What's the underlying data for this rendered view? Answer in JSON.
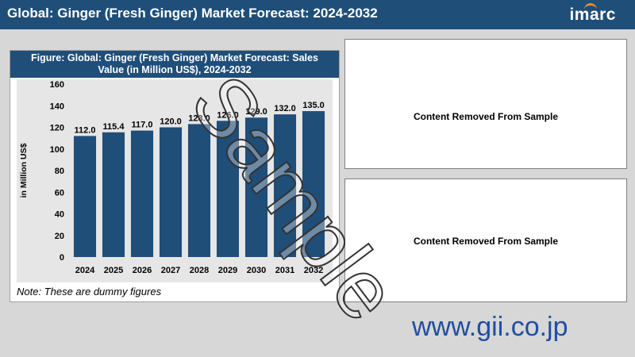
{
  "header": {
    "title": "Global: Ginger (Fresh Ginger) Market Forecast: 2024-2032",
    "logo": "imarc"
  },
  "figure": {
    "caption_line1": "Figure: Global: Ginger (Fresh Ginger) Market Forecast: Sales",
    "caption_line2": "Value (in Million US$), 2024-2032",
    "note": "Note: These are dummy figures"
  },
  "content_boxes": {
    "top_text": "Content Removed From Sample",
    "bottom_text": "Content Removed From Sample"
  },
  "website": "www.gii.co.jp",
  "watermark": "Sample",
  "colors": {
    "header_bg": "#1f4e79",
    "bar": "#1f4e79",
    "website": "#1f4fa0"
  },
  "chart_data": {
    "type": "bar",
    "categories": [
      "2024",
      "2025",
      "2026",
      "2027",
      "2028",
      "2029",
      "2030",
      "2031",
      "2032"
    ],
    "values": [
      112.0,
      115.4,
      117.0,
      120.0,
      123.0,
      126.0,
      129.0,
      132.0,
      135.0
    ],
    "value_labels": [
      "112.0",
      "115.4",
      "117.0",
      "120.0",
      "123.0",
      "126.0",
      "129.0",
      "132.0",
      "135.0"
    ],
    "ylabel": "in Million US$",
    "yticks": [
      0,
      20,
      40,
      60,
      80,
      100,
      120,
      140,
      160
    ],
    "ylim": [
      0,
      160
    ],
    "grid": false,
    "legend": "none"
  }
}
